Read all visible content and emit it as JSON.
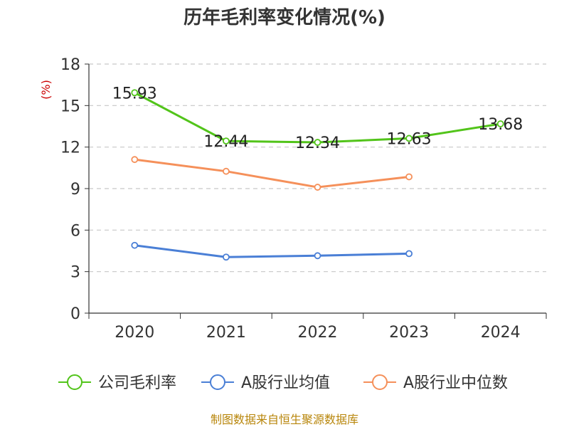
{
  "title": "历年毛利率变化情况(%)",
  "source": "制图数据来自恒生聚源数据库",
  "colors": {
    "gross_margin": "#52c41a",
    "industry_avg": "#4a7fd6",
    "industry_median": "#f5905a",
    "ylabel": "#cc0000",
    "grid": "#c8c8c8",
    "axis": "#333333"
  },
  "chart_data": {
    "type": "line",
    "title": "历年毛利率变化情况(%)",
    "xlabel": "",
    "ylabel": "(%)",
    "ylim": [
      0,
      18
    ],
    "yticks": [
      0,
      3,
      6,
      9,
      12,
      15,
      18
    ],
    "categories": [
      "2020",
      "2021",
      "2022",
      "2023",
      "2024"
    ],
    "grid": true,
    "legend_position": "bottom",
    "series": [
      {
        "name": "公司毛利率",
        "color": "#52c41a",
        "values": [
          15.93,
          12.44,
          12.34,
          12.63,
          13.68
        ],
        "labels": [
          "15.93",
          "12.44",
          "12.34",
          "12.63",
          "13.68"
        ]
      },
      {
        "name": "A股行业均值",
        "color": "#4a7fd6",
        "values": [
          4.9,
          4.05,
          4.15,
          4.3,
          null
        ]
      },
      {
        "name": "A股行业中位数",
        "color": "#f5905a",
        "values": [
          11.1,
          10.25,
          9.1,
          9.85,
          null
        ]
      }
    ]
  }
}
